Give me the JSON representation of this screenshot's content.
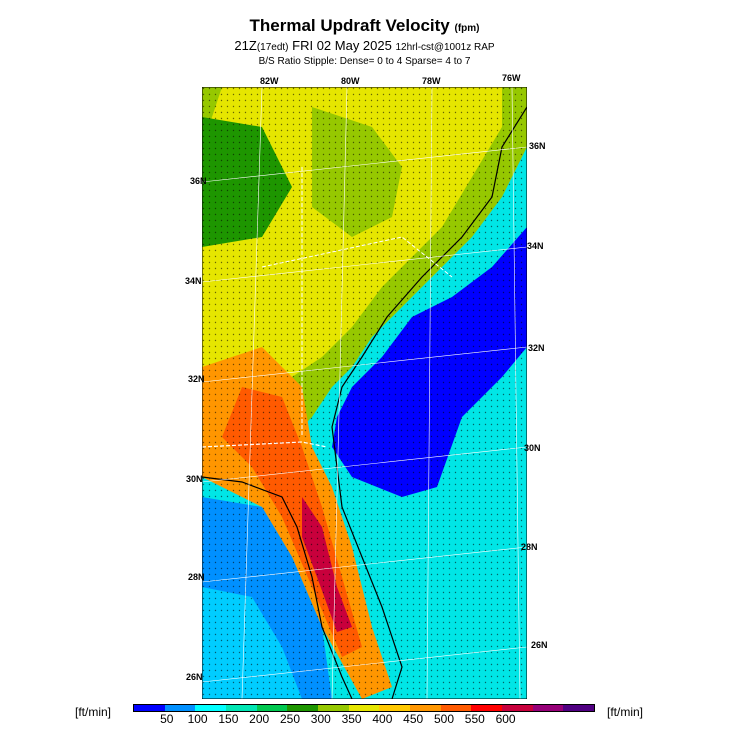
{
  "header": {
    "title": "Thermal Updraft Velocity",
    "title_unit": "(fpm)",
    "subtitle_time": "21Z",
    "subtitle_edt": "(17edt)",
    "subtitle_date": "FRI 02 May 2025",
    "subtitle_model": "12hrl-cst@1001z RAP",
    "stipple_note": "B/S Ratio Stipple:  Dense= 0 to 4  Sparse= 4 to 7"
  },
  "map": {
    "top_lon_labels": [
      "82W",
      "80W",
      "78W",
      "76W"
    ],
    "left_lat_labels": [
      "36N",
      "34N",
      "32N",
      "30N",
      "28N",
      "26N"
    ],
    "right_lat_labels": [
      "36N",
      "34N",
      "32N",
      "30N",
      "28N",
      "26N"
    ]
  },
  "colorbar": {
    "unit_left": "[ft/min]",
    "unit_right": "[ft/min]",
    "colors": [
      "#0000ff",
      "#0090ff",
      "#00ffff",
      "#00e6b4",
      "#00c850",
      "#1e9600",
      "#96c800",
      "#e6e600",
      "#ffc800",
      "#ff9600",
      "#ff5a00",
      "#ff0000",
      "#c8003c",
      "#960078",
      "#500082"
    ],
    "ticks": [
      "50",
      "100",
      "150",
      "200",
      "250",
      "300",
      "350",
      "400",
      "450",
      "500",
      "550",
      "600"
    ]
  }
}
